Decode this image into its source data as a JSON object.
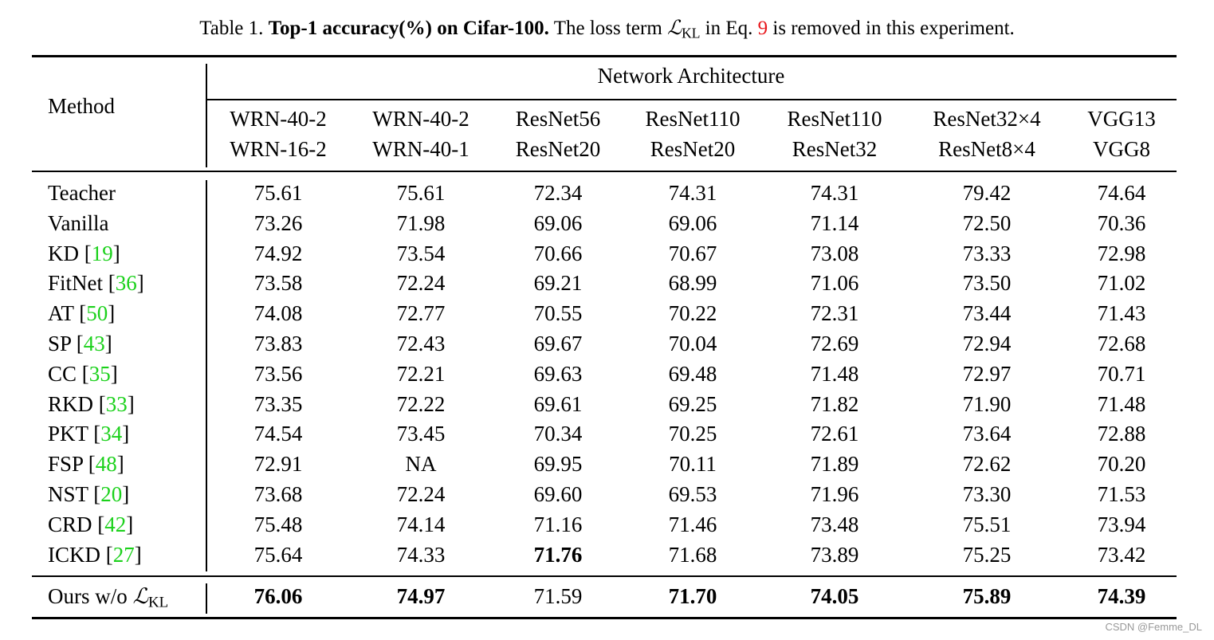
{
  "caption": {
    "prefix": "Table 1. ",
    "bold": "Top-1 accuracy(%) on Cifar-100.",
    "text1": " The loss term ",
    "loss_symbol": "ℒ",
    "loss_sub": "KL",
    "text2": " in Eq. ",
    "eq_ref": "9",
    "text3": " is removed in this experiment."
  },
  "header": {
    "method": "Method",
    "group": "Network Architecture",
    "columns": [
      {
        "teacher": "WRN-40-2",
        "student": "WRN-16-2"
      },
      {
        "teacher": "WRN-40-2",
        "student": "WRN-40-1"
      },
      {
        "teacher": "ResNet56",
        "student": "ResNet20"
      },
      {
        "teacher": "ResNet110",
        "student": "ResNet20"
      },
      {
        "teacher": "ResNet110",
        "student": "ResNet32"
      },
      {
        "teacher": "ResNet32×4",
        "student": "ResNet8×4"
      },
      {
        "teacher": "VGG13",
        "student": "VGG8"
      }
    ]
  },
  "rows": [
    {
      "method": "Teacher",
      "cite": "",
      "values": [
        "75.61",
        "75.61",
        "72.34",
        "74.31",
        "74.31",
        "79.42",
        "74.64"
      ],
      "bold": []
    },
    {
      "method": "Vanilla",
      "cite": "",
      "values": [
        "73.26",
        "71.98",
        "69.06",
        "69.06",
        "71.14",
        "72.50",
        "70.36"
      ],
      "bold": []
    },
    {
      "method": "KD",
      "cite": "19",
      "values": [
        "74.92",
        "73.54",
        "70.66",
        "70.67",
        "73.08",
        "73.33",
        "72.98"
      ],
      "bold": []
    },
    {
      "method": "FitNet",
      "cite": "36",
      "values": [
        "73.58",
        "72.24",
        "69.21",
        "68.99",
        "71.06",
        "73.50",
        "71.02"
      ],
      "bold": []
    },
    {
      "method": "AT",
      "cite": "50",
      "values": [
        "74.08",
        "72.77",
        "70.55",
        "70.22",
        "72.31",
        "73.44",
        "71.43"
      ],
      "bold": []
    },
    {
      "method": "SP",
      "cite": "43",
      "values": [
        "73.83",
        "72.43",
        "69.67",
        "70.04",
        "72.69",
        "72.94",
        "72.68"
      ],
      "bold": []
    },
    {
      "method": "CC",
      "cite": "35",
      "values": [
        "73.56",
        "72.21",
        "69.63",
        "69.48",
        "71.48",
        "72.97",
        "70.71"
      ],
      "bold": []
    },
    {
      "method": "RKD",
      "cite": "33",
      "values": [
        "73.35",
        "72.22",
        "69.61",
        "69.25",
        "71.82",
        "71.90",
        "71.48"
      ],
      "bold": []
    },
    {
      "method": "PKT",
      "cite": "34",
      "values": [
        "74.54",
        "73.45",
        "70.34",
        "70.25",
        "72.61",
        "73.64",
        "72.88"
      ],
      "bold": []
    },
    {
      "method": "FSP",
      "cite": "48",
      "values": [
        "72.91",
        "NA",
        "69.95",
        "70.11",
        "71.89",
        "72.62",
        "70.20"
      ],
      "bold": []
    },
    {
      "method": "NST",
      "cite": "20",
      "values": [
        "73.68",
        "72.24",
        "69.60",
        "69.53",
        "71.96",
        "73.30",
        "71.53"
      ],
      "bold": []
    },
    {
      "method": "CRD",
      "cite": "42",
      "values": [
        "75.48",
        "74.14",
        "71.16",
        "71.46",
        "73.48",
        "75.51",
        "73.94"
      ],
      "bold": []
    },
    {
      "method": "ICKD",
      "cite": "27",
      "values": [
        "75.64",
        "74.33",
        "71.76",
        "71.68",
        "73.89",
        "75.25",
        "73.42"
      ],
      "bold": [
        2
      ]
    }
  ],
  "ours": {
    "method": "Ours w/o ",
    "loss_symbol": "ℒ",
    "loss_sub": "KL",
    "values": [
      "76.06",
      "74.97",
      "71.59",
      "71.70",
      "74.05",
      "75.89",
      "74.39"
    ],
    "bold": [
      0,
      1,
      3,
      4,
      5,
      6
    ]
  },
  "watermark": "CSDN @Femme_DL",
  "colors": {
    "citation": "#1bd11b",
    "eq_ref": "#e8161b"
  }
}
